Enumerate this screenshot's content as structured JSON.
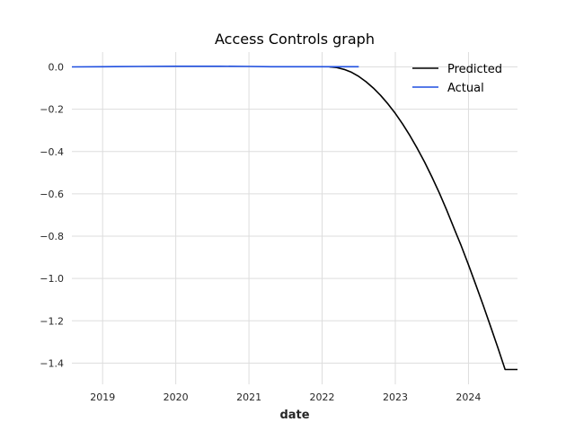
{
  "chart_data": {
    "type": "line",
    "title": "Access Controls graph",
    "xlabel": "date",
    "ylabel": "",
    "x_range": [
      2018.58,
      2024.67
    ],
    "ylim": [
      -1.5,
      0.07
    ],
    "x_ticks": [
      2019,
      2020,
      2021,
      2022,
      2023,
      2024
    ],
    "y_ticks": [
      0.0,
      -0.2,
      -0.4,
      -0.6,
      -0.8,
      -1.0,
      -1.2,
      -1.4
    ],
    "y_tick_labels": [
      "0.0",
      "−0.2",
      "−0.4",
      "−0.6",
      "−0.8",
      "−1.0",
      "−1.2",
      "−1.4"
    ],
    "grid": true,
    "legend_position": "top-right",
    "series": [
      {
        "name": "Predicted",
        "color": "#000000",
        "x": [
          2022.1,
          2022.2,
          2022.3,
          2022.4,
          2022.5,
          2022.6,
          2022.7,
          2022.8,
          2022.9,
          2023.0,
          2023.1,
          2023.2,
          2023.3,
          2023.4,
          2023.5,
          2023.6,
          2023.7,
          2023.8,
          2023.9,
          2024.0,
          2024.1,
          2024.2,
          2024.3,
          2024.4,
          2024.5,
          2024.6,
          2024.67
        ],
        "y": [
          0.0,
          -0.003,
          -0.012,
          -0.025,
          -0.045,
          -0.07,
          -0.1,
          -0.135,
          -0.175,
          -0.22,
          -0.27,
          -0.325,
          -0.385,
          -0.45,
          -0.52,
          -0.595,
          -0.675,
          -0.76,
          -0.845,
          -0.935,
          -1.03,
          -1.125,
          -1.225,
          -1.325,
          -1.43,
          -1.43,
          -1.43
        ]
      },
      {
        "name": "Actual",
        "color": "#1f4fe0",
        "x": [
          2018.58,
          2019.0,
          2019.5,
          2020.0,
          2020.3,
          2020.6,
          2021.0,
          2021.3,
          2021.6,
          2022.0,
          2022.3,
          2022.5
        ],
        "y": [
          0.0,
          0.001,
          0.002,
          0.003,
          0.003,
          0.003,
          0.002,
          0.001,
          0.001,
          0.001,
          0.001,
          0.001
        ]
      }
    ]
  }
}
